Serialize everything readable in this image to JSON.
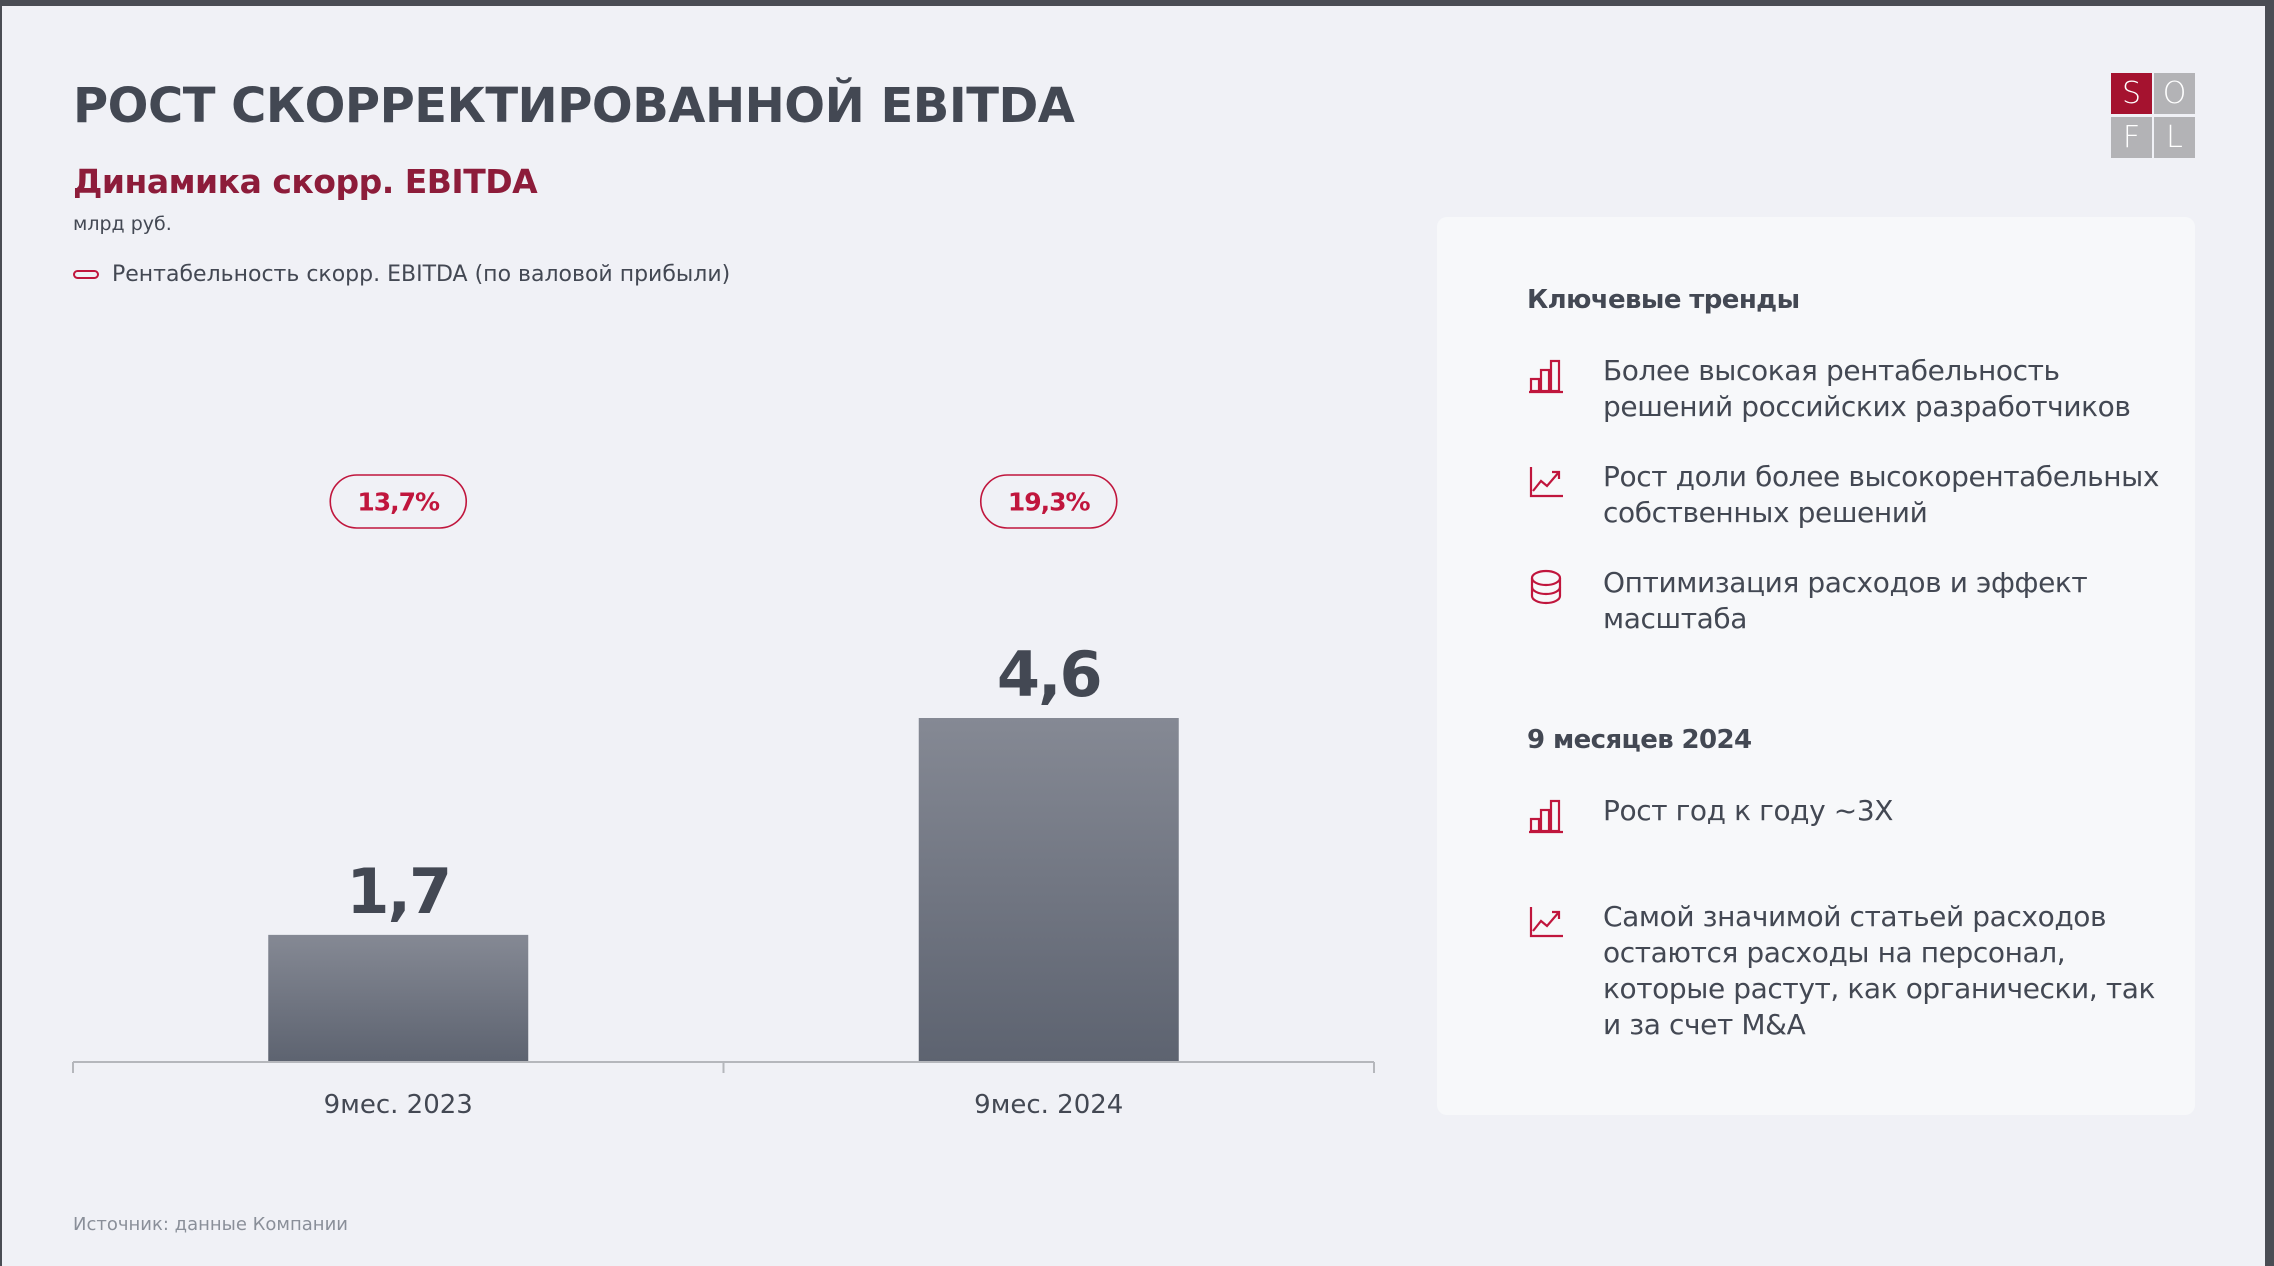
{
  "header": {
    "title": "РОСТ СКОРРЕКТИРОВАННОЙ EBITDA",
    "subtitle": "Динамика скорр. EBITDA",
    "units": "млрд руб."
  },
  "legend": {
    "label": "Рентабельность скорр. EBITDA (по валовой прибыли)",
    "color": "#c0163d"
  },
  "logo": {
    "letters": [
      "S",
      "O",
      "F",
      "L"
    ],
    "accent": "#a5122f",
    "neutral": "#b3b3b6"
  },
  "chart_data": {
    "type": "bar",
    "title": "Динамика скорр. EBITDA",
    "ylabel": "млрд руб.",
    "xlabel": "",
    "categories": [
      "9мес. 2023",
      "9мес. 2024"
    ],
    "values": [
      1.7,
      4.6
    ],
    "value_labels": [
      "1,7",
      "4,6"
    ],
    "ylim": [
      0,
      4.6
    ],
    "grid": false,
    "legend_position": "top-left",
    "bar_color_top": "#858994",
    "bar_color_bottom": "#5d6370",
    "annotations": {
      "name": "Рентабельность скорр. EBITDA (по валовой прибыли)",
      "values": [
        13.7,
        19.3
      ],
      "labels": [
        "13,7%",
        "19,3%"
      ],
      "color": "#c0163d"
    }
  },
  "panel": {
    "sections": [
      {
        "heading": "Ключевые тренды",
        "items": [
          {
            "icon": "bar-chart-icon",
            "text": "Более высокая рентабельность решений российских разработчиков"
          },
          {
            "icon": "trend-up-icon",
            "text": "Рост доли более высокорентабельных собственных решений"
          },
          {
            "icon": "coins-stack-icon",
            "text": "Оптимизация расходов и эффект масштаба"
          }
        ]
      },
      {
        "heading": "9 месяцев 2024",
        "items": [
          {
            "icon": "bar-chart-icon",
            "text": "Рост год к году ~3Х"
          },
          {
            "icon": "trend-up-icon",
            "text": "Самой значимой статьей расходов остаются расходы на персонал, которые растут, как органически, так и за счет M&A"
          }
        ]
      }
    ]
  },
  "footer": {
    "source": "Источник: данные Компании"
  },
  "colors": {
    "accent": "#c0163d",
    "subtitle": "#8d1c3a",
    "text": "#434853",
    "background": "#f0f1f6"
  }
}
